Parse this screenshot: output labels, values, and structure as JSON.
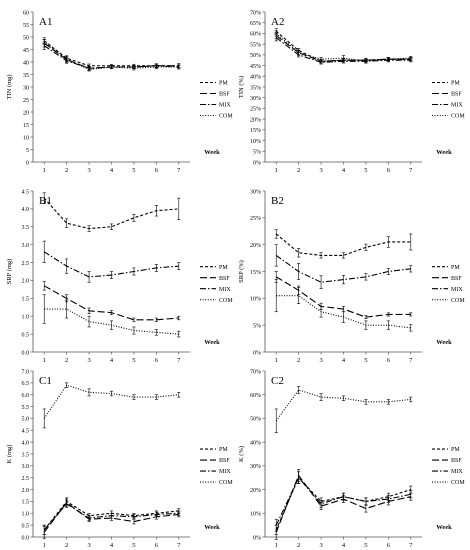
{
  "chart_data": [
    {
      "type": "line",
      "id": "A1",
      "panel_label": "A1",
      "ylabel": "TIN (mg)",
      "xlabel": "Week",
      "ylim": [
        0,
        60
      ],
      "yticks": [
        0,
        5,
        10,
        15,
        20,
        25,
        30,
        35,
        40,
        45,
        50,
        55,
        60
      ],
      "ytick_labels": [
        "0",
        "5",
        "10",
        "15",
        "20",
        "25",
        "30",
        "35",
        "40",
        "45",
        "50",
        "55",
        "60"
      ],
      "categories": [
        1,
        2,
        3,
        4,
        5,
        6,
        7
      ],
      "legend": "right",
      "series": [
        {
          "name": "PM",
          "style": "short-dash",
          "values": [
            48.5,
            41.5,
            38.5,
            38.5,
            38.5,
            38.5,
            38.5
          ],
          "errors": [
            1.2,
            1.0,
            0.7,
            0.6,
            0.6,
            0.8,
            0.8
          ]
        },
        {
          "name": "BSF",
          "style": "long-dash",
          "values": [
            47.5,
            41.0,
            37.5,
            38.0,
            38.0,
            38.5,
            38.5
          ],
          "errors": [
            1.5,
            1.2,
            0.8,
            0.7,
            0.7,
            0.7,
            0.8
          ]
        },
        {
          "name": "MIX",
          "style": "dash-dot",
          "values": [
            46.5,
            40.5,
            37.5,
            38.0,
            38.0,
            38.5,
            38.0
          ],
          "errors": [
            1.5,
            1.0,
            0.6,
            0.6,
            0.6,
            0.6,
            0.7
          ]
        },
        {
          "name": "COM",
          "style": "dot",
          "values": [
            48.0,
            41.0,
            37.0,
            38.0,
            37.5,
            38.0,
            38.0
          ],
          "errors": [
            1.0,
            0.8,
            0.6,
            0.6,
            0.7,
            0.7,
            0.8
          ]
        }
      ]
    },
    {
      "type": "line",
      "id": "A2",
      "panel_label": "A2",
      "ylabel": "TIN (%)",
      "xlabel": "Week",
      "ylim": [
        0,
        70
      ],
      "yticks": [
        0,
        5,
        10,
        15,
        20,
        25,
        30,
        35,
        40,
        45,
        50,
        55,
        60,
        65,
        70
      ],
      "ytick_labels": [
        "0%",
        "5%",
        "10%",
        "15%",
        "20%",
        "25%",
        "30%",
        "35%",
        "40%",
        "45%",
        "50%",
        "55%",
        "60%",
        "65%",
        "70%"
      ],
      "categories": [
        1,
        2,
        3,
        4,
        5,
        6,
        7
      ],
      "legend": "right",
      "series": [
        {
          "name": "PM",
          "style": "short-dash",
          "values": [
            61,
            52,
            47,
            47.5,
            47.5,
            48,
            48
          ],
          "errors": [
            1.2,
            1.0,
            0.8,
            0.8,
            0.8,
            0.8,
            0.8
          ]
        },
        {
          "name": "BSF",
          "style": "long-dash",
          "values": [
            59,
            51,
            47,
            47.5,
            47.5,
            48,
            48
          ],
          "errors": [
            1.5,
            1.2,
            0.8,
            0.8,
            0.8,
            0.8,
            0.8
          ]
        },
        {
          "name": "MIX",
          "style": "dash-dot",
          "values": [
            58,
            50,
            46.5,
            47,
            47,
            47.5,
            47.5
          ],
          "errors": [
            1.5,
            1.0,
            0.8,
            0.8,
            0.8,
            0.8,
            0.8
          ]
        },
        {
          "name": "COM",
          "style": "dot",
          "values": [
            60,
            51,
            48,
            48.5,
            47,
            48,
            48.5
          ],
          "errors": [
            1.2,
            1.0,
            0.8,
            1.2,
            0.8,
            0.8,
            0.8
          ]
        }
      ]
    },
    {
      "type": "line",
      "id": "B1",
      "panel_label": "B1",
      "ylabel": "SRP (mg)",
      "xlabel": "Week",
      "ylim": [
        0,
        4.5
      ],
      "yticks": [
        0,
        0.5,
        1,
        1.5,
        2,
        2.5,
        3,
        3.5,
        4,
        4.5
      ],
      "ytick_labels": [
        "0.0",
        "0.5",
        "1.0",
        "1.5",
        "2.0",
        "2.5",
        "3.0",
        "3.5",
        "4.0",
        "4.5"
      ],
      "categories": [
        1,
        2,
        3,
        4,
        5,
        6,
        7
      ],
      "legend": "right",
      "series": [
        {
          "name": "PM",
          "style": "short-dash",
          "values": [
            4.3,
            3.6,
            3.45,
            3.5,
            3.75,
            3.95,
            4.0
          ],
          "errors": [
            0.15,
            0.12,
            0.08,
            0.08,
            0.1,
            0.15,
            0.3
          ]
        },
        {
          "name": "BSF",
          "style": "long-dash",
          "values": [
            1.85,
            1.5,
            1.15,
            1.1,
            0.9,
            0.9,
            0.95
          ],
          "errors": [
            0.12,
            0.1,
            0.08,
            0.06,
            0.05,
            0.05,
            0.05
          ]
        },
        {
          "name": "MIX",
          "style": "dash-dot",
          "values": [
            2.8,
            2.4,
            2.1,
            2.15,
            2.25,
            2.35,
            2.4
          ],
          "errors": [
            0.3,
            0.2,
            0.15,
            0.1,
            0.1,
            0.1,
            0.1
          ]
        },
        {
          "name": "COM",
          "style": "dot",
          "values": [
            1.2,
            1.2,
            0.85,
            0.75,
            0.6,
            0.55,
            0.5
          ],
          "errors": [
            0.4,
            0.25,
            0.15,
            0.12,
            0.1,
            0.08,
            0.08
          ]
        }
      ]
    },
    {
      "type": "line",
      "id": "B2",
      "panel_label": "B2",
      "ylabel": "SRP (%)",
      "xlabel": "Week",
      "ylim": [
        0,
        30
      ],
      "yticks": [
        0,
        5,
        10,
        15,
        20,
        25,
        30
      ],
      "ytick_labels": [
        "0%",
        "5%",
        "10%",
        "15%",
        "20%",
        "25%",
        "30%"
      ],
      "categories": [
        1,
        2,
        3,
        4,
        5,
        6,
        7
      ],
      "legend": "right",
      "series": [
        {
          "name": "PM",
          "style": "short-dash",
          "values": [
            22,
            18.5,
            18,
            18,
            19.5,
            20.5,
            20.5
          ],
          "errors": [
            0.8,
            0.8,
            0.5,
            0.5,
            0.6,
            1.0,
            1.5
          ]
        },
        {
          "name": "BSF",
          "style": "long-dash",
          "values": [
            14,
            11.5,
            8.5,
            8,
            6.5,
            7,
            7
          ],
          "errors": [
            1.0,
            0.8,
            0.6,
            0.5,
            0.3,
            0.3,
            0.3
          ]
        },
        {
          "name": "MIX",
          "style": "dash-dot",
          "values": [
            18,
            15,
            13,
            13.5,
            14,
            15,
            15.5
          ],
          "errors": [
            2.0,
            1.5,
            1.2,
            0.8,
            0.6,
            0.6,
            0.6
          ]
        },
        {
          "name": "COM",
          "style": "dot",
          "values": [
            10.5,
            10.5,
            7.5,
            6.5,
            5,
            5,
            4.5
          ],
          "errors": [
            3.0,
            1.5,
            1.0,
            1.0,
            0.8,
            0.8,
            0.6
          ]
        }
      ]
    },
    {
      "type": "line",
      "id": "C1",
      "panel_label": "C1",
      "ylabel": "K (mg)",
      "xlabel": "Week",
      "ylim": [
        0,
        7
      ],
      "yticks": [
        0,
        0.5,
        1,
        1.5,
        2,
        2.5,
        3,
        3.5,
        4,
        4.5,
        5,
        5.5,
        6,
        6.5,
        7
      ],
      "ytick_labels": [
        "0.0",
        "0.5",
        "1.0",
        "1.5",
        "2.0",
        "2.5",
        "3.0",
        "3.5",
        "4.0",
        "4.5",
        "5.0",
        "5.5",
        "6.0",
        "6.5",
        "7.0"
      ],
      "categories": [
        1,
        2,
        3,
        4,
        5,
        6,
        7
      ],
      "legend": "right",
      "series": [
        {
          "name": "PM",
          "style": "short-dash",
          "values": [
            0.3,
            1.5,
            0.9,
            1.0,
            0.9,
            1.0,
            1.1
          ],
          "errors": [
            0.2,
            0.15,
            0.1,
            0.1,
            0.1,
            0.1,
            0.1
          ]
        },
        {
          "name": "BSF",
          "style": "long-dash",
          "values": [
            0.2,
            1.45,
            0.75,
            0.8,
            0.65,
            0.85,
            0.95
          ],
          "errors": [
            0.25,
            0.15,
            0.1,
            0.1,
            0.1,
            0.1,
            0.1
          ]
        },
        {
          "name": "MIX",
          "style": "dash-dot",
          "values": [
            0.3,
            1.4,
            0.8,
            0.9,
            0.85,
            0.95,
            1.0
          ],
          "errors": [
            0.2,
            0.15,
            0.1,
            0.1,
            0.1,
            0.1,
            0.1
          ]
        },
        {
          "name": "COM",
          "style": "dot",
          "values": [
            5.0,
            6.4,
            6.1,
            6.05,
            5.9,
            5.9,
            6.0
          ],
          "errors": [
            0.4,
            0.1,
            0.15,
            0.1,
            0.1,
            0.1,
            0.1
          ]
        }
      ]
    },
    {
      "type": "line",
      "id": "C2",
      "panel_label": "C2",
      "ylabel": "K (%)",
      "xlabel": "Week",
      "ylim": [
        0,
        70
      ],
      "yticks": [
        0,
        10,
        20,
        30,
        40,
        50,
        60,
        70
      ],
      "ytick_labels": [
        "0%",
        "10%",
        "20%",
        "30%",
        "40%",
        "50%",
        "60%",
        "70%"
      ],
      "categories": [
        1,
        2,
        3,
        4,
        5,
        6,
        7
      ],
      "legend": "right",
      "series": [
        {
          "name": "PM",
          "style": "short-dash",
          "values": [
            3,
            25,
            15,
            17,
            15,
            17,
            20
          ],
          "errors": [
            2,
            2.5,
            1.5,
            1.5,
            1.5,
            1.5,
            1.5
          ]
        },
        {
          "name": "BSF",
          "style": "long-dash",
          "values": [
            2,
            26,
            13,
            16,
            12,
            15,
            17
          ],
          "errors": [
            3,
            2.5,
            1.5,
            1.5,
            1.5,
            1.5,
            1.5
          ]
        },
        {
          "name": "MIX",
          "style": "dash-dot",
          "values": [
            5,
            25,
            14,
            17,
            15,
            16,
            18
          ],
          "errors": [
            2.5,
            2.5,
            1.5,
            1.5,
            1.5,
            1.5,
            1.5
          ]
        },
        {
          "name": "COM",
          "style": "dot",
          "values": [
            49,
            62,
            59,
            58.5,
            57,
            57,
            58
          ],
          "errors": [
            5,
            1.5,
            1.5,
            1.0,
            1.0,
            1.0,
            1.0
          ]
        }
      ]
    }
  ]
}
